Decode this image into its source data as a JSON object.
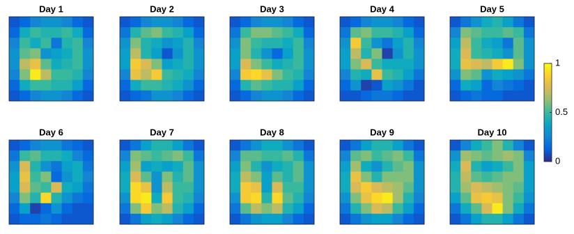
{
  "chart_data": {
    "type": "heatmap",
    "colormap": [
      "#352a87",
      "#0363e1",
      "#1485d4",
      "#06a7c6",
      "#38b99e",
      "#92bf73",
      "#d9ba56",
      "#fcce2e",
      "#f9fb0e"
    ],
    "clim": [
      0,
      1
    ],
    "cticks": [
      0,
      0.5,
      1
    ],
    "panels": [
      {
        "title": "Day 1",
        "values": [
          [
            0.1,
            0.15,
            0.25,
            0.3,
            0.3,
            0.25,
            0.15,
            0.1
          ],
          [
            0.15,
            0.4,
            0.5,
            0.45,
            0.45,
            0.5,
            0.4,
            0.15
          ],
          [
            0.25,
            0.5,
            0.4,
            0.5,
            0.2,
            0.45,
            0.5,
            0.25
          ],
          [
            0.3,
            0.55,
            0.6,
            0.3,
            0.35,
            0.4,
            0.5,
            0.3
          ],
          [
            0.3,
            0.7,
            0.8,
            0.55,
            0.4,
            0.45,
            0.5,
            0.3
          ],
          [
            0.25,
            0.6,
            0.95,
            0.7,
            0.5,
            0.5,
            0.45,
            0.25
          ],
          [
            0.15,
            0.4,
            0.5,
            0.5,
            0.45,
            0.45,
            0.35,
            0.15
          ],
          [
            0.1,
            0.15,
            0.25,
            0.3,
            0.3,
            0.25,
            0.15,
            0.1
          ]
        ]
      },
      {
        "title": "Day 2",
        "values": [
          [
            0.1,
            0.15,
            0.25,
            0.3,
            0.3,
            0.25,
            0.15,
            0.1
          ],
          [
            0.2,
            0.45,
            0.55,
            0.6,
            0.5,
            0.45,
            0.35,
            0.15
          ],
          [
            0.3,
            0.6,
            0.45,
            0.4,
            0.3,
            0.35,
            0.45,
            0.25
          ],
          [
            0.35,
            0.7,
            0.45,
            0.35,
            0.1,
            0.3,
            0.45,
            0.3
          ],
          [
            0.35,
            0.85,
            0.75,
            0.6,
            0.35,
            0.4,
            0.45,
            0.3
          ],
          [
            0.25,
            0.8,
            0.7,
            0.85,
            0.5,
            0.45,
            0.4,
            0.25
          ],
          [
            0.15,
            0.4,
            0.5,
            0.5,
            0.45,
            0.4,
            0.3,
            0.15
          ],
          [
            0.1,
            0.15,
            0.2,
            0.3,
            0.3,
            0.25,
            0.15,
            0.1
          ]
        ]
      },
      {
        "title": "Day 3",
        "values": [
          [
            0.1,
            0.15,
            0.25,
            0.3,
            0.3,
            0.25,
            0.15,
            0.1
          ],
          [
            0.2,
            0.5,
            0.6,
            0.6,
            0.55,
            0.5,
            0.4,
            0.15
          ],
          [
            0.3,
            0.6,
            0.5,
            0.45,
            0.45,
            0.4,
            0.5,
            0.25
          ],
          [
            0.35,
            0.6,
            0.45,
            0.3,
            0.15,
            0.35,
            0.5,
            0.3
          ],
          [
            0.35,
            0.75,
            0.6,
            0.5,
            0.4,
            0.45,
            0.5,
            0.3
          ],
          [
            0.25,
            0.85,
            0.9,
            0.8,
            0.6,
            0.5,
            0.45,
            0.25
          ],
          [
            0.15,
            0.45,
            0.55,
            0.5,
            0.45,
            0.45,
            0.35,
            0.15
          ],
          [
            0.1,
            0.15,
            0.25,
            0.3,
            0.3,
            0.25,
            0.15,
            0.1
          ]
        ]
      },
      {
        "title": "Day 4",
        "values": [
          [
            0.1,
            0.15,
            0.25,
            0.3,
            0.3,
            0.25,
            0.15,
            0.1
          ],
          [
            0.2,
            0.55,
            0.6,
            0.5,
            0.5,
            0.45,
            0.35,
            0.15
          ],
          [
            0.3,
            0.85,
            0.5,
            0.3,
            0.2,
            0.35,
            0.45,
            0.25
          ],
          [
            0.35,
            0.7,
            0.45,
            0.6,
            0.05,
            0.3,
            0.45,
            0.3
          ],
          [
            0.35,
            0.6,
            0.75,
            0.5,
            0.4,
            0.4,
            0.4,
            0.3
          ],
          [
            0.25,
            0.45,
            0.4,
            0.8,
            0.5,
            0.45,
            0.35,
            0.2
          ],
          [
            0.15,
            0.3,
            0.05,
            0.1,
            0.35,
            0.3,
            0.2,
            0.1
          ],
          [
            0.1,
            0.1,
            0.15,
            0.2,
            0.2,
            0.15,
            0.1,
            0.1
          ]
        ]
      },
      {
        "title": "Day 5",
        "values": [
          [
            0.1,
            0.2,
            0.3,
            0.4,
            0.45,
            0.35,
            0.2,
            0.1
          ],
          [
            0.25,
            0.6,
            0.55,
            0.5,
            0.5,
            0.55,
            0.5,
            0.2
          ],
          [
            0.35,
            0.7,
            0.5,
            0.4,
            0.35,
            0.2,
            0.55,
            0.3
          ],
          [
            0.4,
            0.75,
            0.5,
            0.45,
            0.4,
            0.3,
            0.55,
            0.3
          ],
          [
            0.4,
            0.8,
            0.75,
            0.7,
            0.85,
            0.95,
            0.6,
            0.3
          ],
          [
            0.3,
            0.6,
            0.55,
            0.3,
            0.4,
            0.35,
            0.3,
            0.2
          ],
          [
            0.15,
            0.4,
            0.35,
            0.15,
            0.25,
            0.2,
            0.15,
            0.1
          ],
          [
            0.1,
            0.15,
            0.2,
            0.15,
            0.15,
            0.1,
            0.1,
            0.1
          ]
        ]
      },
      {
        "title": "Day 6",
        "values": [
          [
            0.1,
            0.15,
            0.25,
            0.3,
            0.3,
            0.2,
            0.15,
            0.1
          ],
          [
            0.2,
            0.5,
            0.55,
            0.45,
            0.45,
            0.4,
            0.25,
            0.15
          ],
          [
            0.3,
            0.75,
            0.45,
            0.3,
            0.2,
            0.35,
            0.4,
            0.2
          ],
          [
            0.35,
            0.8,
            0.5,
            0.6,
            0.15,
            0.3,
            0.4,
            0.25
          ],
          [
            0.35,
            0.75,
            0.55,
            0.5,
            0.75,
            0.4,
            0.35,
            0.2
          ],
          [
            0.25,
            0.6,
            0.45,
            0.9,
            0.45,
            0.3,
            0.2,
            0.15
          ],
          [
            0.15,
            0.35,
            0.05,
            0.15,
            0.3,
            0.15,
            0.1,
            0.1
          ],
          [
            0.1,
            0.15,
            0.15,
            0.2,
            0.15,
            0.1,
            0.1,
            0.1
          ]
        ]
      },
      {
        "title": "Day 7",
        "values": [
          [
            0.1,
            0.2,
            0.35,
            0.45,
            0.45,
            0.35,
            0.2,
            0.1
          ],
          [
            0.25,
            0.6,
            0.55,
            0.5,
            0.55,
            0.6,
            0.5,
            0.2
          ],
          [
            0.35,
            0.65,
            0.35,
            0.4,
            0.35,
            0.4,
            0.55,
            0.3
          ],
          [
            0.4,
            0.75,
            0.55,
            0.3,
            0.6,
            0.45,
            0.55,
            0.3
          ],
          [
            0.4,
            0.9,
            0.8,
            0.3,
            0.7,
            0.5,
            0.5,
            0.3
          ],
          [
            0.3,
            0.9,
            0.95,
            0.4,
            0.85,
            0.5,
            0.45,
            0.25
          ],
          [
            0.2,
            0.6,
            0.85,
            0.6,
            0.7,
            0.45,
            0.35,
            0.15
          ],
          [
            0.1,
            0.2,
            0.35,
            0.4,
            0.35,
            0.25,
            0.15,
            0.1
          ]
        ]
      },
      {
        "title": "Day 8",
        "values": [
          [
            0.1,
            0.2,
            0.3,
            0.4,
            0.4,
            0.3,
            0.2,
            0.1
          ],
          [
            0.25,
            0.55,
            0.55,
            0.5,
            0.5,
            0.55,
            0.45,
            0.2
          ],
          [
            0.35,
            0.6,
            0.45,
            0.3,
            0.4,
            0.45,
            0.55,
            0.3
          ],
          [
            0.4,
            0.7,
            0.6,
            0.35,
            0.55,
            0.45,
            0.55,
            0.3
          ],
          [
            0.4,
            0.85,
            0.8,
            0.35,
            0.75,
            0.5,
            0.5,
            0.3
          ],
          [
            0.3,
            0.85,
            0.9,
            0.45,
            0.9,
            0.55,
            0.45,
            0.25
          ],
          [
            0.2,
            0.55,
            0.7,
            0.6,
            0.7,
            0.45,
            0.35,
            0.15
          ],
          [
            0.1,
            0.2,
            0.3,
            0.35,
            0.35,
            0.25,
            0.15,
            0.1
          ]
        ]
      },
      {
        "title": "Day 9",
        "values": [
          [
            0.1,
            0.2,
            0.35,
            0.45,
            0.45,
            0.35,
            0.2,
            0.1
          ],
          [
            0.25,
            0.55,
            0.6,
            0.5,
            0.55,
            0.6,
            0.5,
            0.2
          ],
          [
            0.35,
            0.65,
            0.4,
            0.3,
            0.45,
            0.55,
            0.6,
            0.3
          ],
          [
            0.4,
            0.8,
            0.6,
            0.45,
            0.6,
            0.6,
            0.6,
            0.3
          ],
          [
            0.4,
            0.75,
            0.85,
            0.75,
            0.7,
            0.65,
            0.55,
            0.3
          ],
          [
            0.3,
            0.6,
            0.8,
            0.9,
            0.95,
            0.65,
            0.45,
            0.25
          ],
          [
            0.2,
            0.45,
            0.6,
            0.75,
            0.7,
            0.5,
            0.35,
            0.15
          ],
          [
            0.1,
            0.2,
            0.3,
            0.35,
            0.35,
            0.25,
            0.15,
            0.1
          ]
        ]
      },
      {
        "title": "Day 10",
        "values": [
          [
            0.1,
            0.25,
            0.4,
            0.5,
            0.6,
            0.45,
            0.25,
            0.1
          ],
          [
            0.3,
            0.65,
            0.6,
            0.55,
            0.6,
            0.65,
            0.6,
            0.25
          ],
          [
            0.4,
            0.75,
            0.45,
            0.35,
            0.4,
            0.5,
            0.6,
            0.35
          ],
          [
            0.45,
            0.7,
            0.55,
            0.5,
            0.55,
            0.6,
            0.6,
            0.35
          ],
          [
            0.45,
            0.65,
            0.75,
            0.7,
            0.65,
            0.6,
            0.55,
            0.35
          ],
          [
            0.35,
            0.55,
            0.8,
            0.85,
            0.8,
            0.6,
            0.5,
            0.3
          ],
          [
            0.2,
            0.4,
            0.55,
            0.75,
            0.95,
            0.6,
            0.4,
            0.2
          ],
          [
            0.1,
            0.2,
            0.35,
            0.45,
            0.45,
            0.35,
            0.2,
            0.1
          ]
        ]
      }
    ]
  }
}
